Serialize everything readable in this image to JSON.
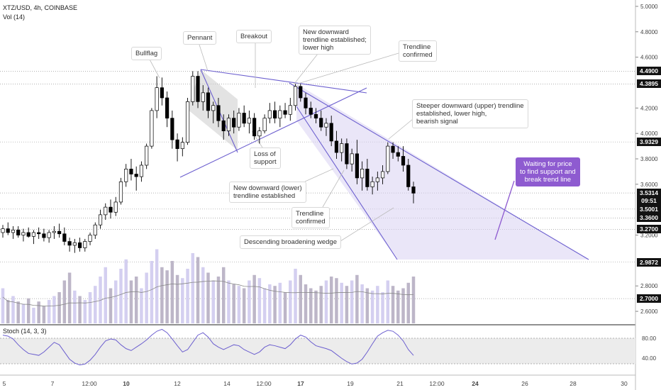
{
  "header": {
    "symbol": "XTZ/USD, 4h, COINBASE",
    "volume": "Vol (14)"
  },
  "stoch_label": "Stoch (14, 3, 3)",
  "colors": {
    "purple": "#8e5bd0",
    "line": "#6c5fcf",
    "up": "#ffffff",
    "down": "#000000",
    "grid": "#e9e9e9"
  },
  "annotations": [
    {
      "id": "bullflag",
      "text": "Bullflag"
    },
    {
      "id": "pennant",
      "text": "Pennant"
    },
    {
      "id": "breakout",
      "text": "Breakout"
    },
    {
      "id": "new-downward",
      "text": "New downward\ntrendline established;\nlower high"
    },
    {
      "id": "trendline-confirmed-1",
      "text": "Trendline\nconfirmed"
    },
    {
      "id": "steeper",
      "text": "Steeper downward (upper) trendline\nestablished, lower high,\nbearish signal"
    },
    {
      "id": "loss-of-support",
      "text": "Loss of\nsupport"
    },
    {
      "id": "new-lower",
      "text": "New downward (lower)\ntrendline established"
    },
    {
      "id": "trendline-confirmed-2",
      "text": "Trendline\nconfirmed"
    },
    {
      "id": "wedge",
      "text": "Descending broadening wedge"
    }
  ],
  "callout": "Waiting for price\nto find support and\nbreak trend line",
  "price_axis": [
    "5.0000",
    "4.8000",
    "4.6000",
    "4.2000",
    "4.0000",
    "3.8000",
    "3.6000",
    "3.2000",
    "2.8000",
    "2.6000"
  ],
  "price_badges": [
    {
      "label": "4.4900",
      "value": 4.49,
      "style": "dark"
    },
    {
      "label": "4.3895",
      "value": 4.3895,
      "style": "dark"
    },
    {
      "label": "3.9329",
      "value": 3.9329,
      "style": "dark"
    },
    {
      "label": "3.5314",
      "value": 3.5314,
      "style": "dark"
    },
    {
      "label": "09:51",
      "value": 3.47,
      "style": "dark"
    },
    {
      "label": "3.5001",
      "value": 3.405,
      "style": "dark"
    },
    {
      "label": "3.3600",
      "value": 3.335,
      "style": "dark"
    },
    {
      "label": "3.2700",
      "value": 3.245,
      "style": "dark"
    },
    {
      "label": "2.9872",
      "value": 2.9872,
      "style": "dark"
    },
    {
      "label": "2.7000",
      "value": 2.7,
      "style": "dark"
    }
  ],
  "stoch_axis": [
    "80.00",
    "40.00"
  ],
  "time_axis": [
    "5",
    "7",
    "12:00",
    "10",
    "12",
    "14",
    "12:00",
    "17",
    "19",
    "21",
    "12:00",
    "24",
    "26",
    "28",
    "30"
  ],
  "chart_data": {
    "type": "candlestick",
    "title": "XTZ/USD, 4h, COINBASE",
    "ylim": [
      2.5,
      5.05
    ],
    "candles": [
      [
        3.22,
        3.28,
        3.18,
        3.25
      ],
      [
        3.25,
        3.3,
        3.2,
        3.22
      ],
      [
        3.22,
        3.27,
        3.17,
        3.24
      ],
      [
        3.24,
        3.27,
        3.18,
        3.2
      ],
      [
        3.2,
        3.25,
        3.15,
        3.22
      ],
      [
        3.22,
        3.26,
        3.18,
        3.19
      ],
      [
        3.19,
        3.24,
        3.13,
        3.22
      ],
      [
        3.22,
        3.26,
        3.17,
        3.21
      ],
      [
        3.21,
        3.25,
        3.15,
        3.18
      ],
      [
        3.18,
        3.24,
        3.14,
        3.22
      ],
      [
        3.22,
        3.27,
        3.17,
        3.23
      ],
      [
        3.23,
        3.29,
        3.18,
        3.21
      ],
      [
        3.21,
        3.26,
        3.12,
        3.15
      ],
      [
        3.15,
        3.18,
        3.07,
        3.12
      ],
      [
        3.12,
        3.17,
        3.06,
        3.14
      ],
      [
        3.14,
        3.18,
        3.07,
        3.1
      ],
      [
        3.1,
        3.17,
        3.07,
        3.15
      ],
      [
        3.15,
        3.22,
        3.12,
        3.2
      ],
      [
        3.2,
        3.3,
        3.17,
        3.28
      ],
      [
        3.28,
        3.4,
        3.25,
        3.36
      ],
      [
        3.36,
        3.45,
        3.32,
        3.42
      ],
      [
        3.42,
        3.48,
        3.33,
        3.38
      ],
      [
        3.38,
        3.5,
        3.35,
        3.46
      ],
      [
        3.46,
        3.65,
        3.44,
        3.62
      ],
      [
        3.62,
        3.76,
        3.58,
        3.72
      ],
      [
        3.72,
        3.8,
        3.63,
        3.68
      ],
      [
        3.68,
        3.74,
        3.55,
        3.66
      ],
      [
        3.66,
        3.78,
        3.62,
        3.75
      ],
      [
        3.75,
        3.92,
        3.72,
        3.9
      ],
      [
        3.9,
        4.2,
        3.88,
        4.18
      ],
      [
        4.18,
        4.45,
        4.12,
        4.36
      ],
      [
        4.36,
        4.44,
        4.22,
        4.28
      ],
      [
        4.28,
        4.33,
        4.05,
        4.12
      ],
      [
        4.12,
        4.18,
        3.88,
        3.95
      ],
      [
        3.95,
        4.0,
        3.78,
        3.88
      ],
      [
        3.88,
        3.97,
        3.82,
        3.93
      ],
      [
        3.93,
        4.28,
        3.91,
        4.25
      ],
      [
        4.25,
        4.49,
        4.22,
        4.45
      ],
      [
        4.45,
        4.49,
        4.2,
        4.25
      ],
      [
        4.25,
        4.38,
        4.18,
        4.32
      ],
      [
        4.32,
        4.36,
        4.12,
        4.18
      ],
      [
        4.18,
        4.25,
        4.08,
        4.22
      ],
      [
        4.22,
        4.28,
        4.05,
        4.1
      ],
      [
        4.1,
        4.15,
        3.95,
        4.02
      ],
      [
        4.02,
        4.15,
        3.98,
        4.12
      ],
      [
        4.12,
        4.18,
        4.0,
        4.05
      ],
      [
        4.05,
        4.2,
        4.02,
        4.16
      ],
      [
        4.16,
        4.22,
        4.05,
        4.08
      ],
      [
        4.08,
        4.18,
        4.0,
        4.12
      ],
      [
        4.12,
        4.16,
        3.95,
        3.98
      ],
      [
        3.98,
        4.05,
        3.92,
        4.02
      ],
      [
        4.02,
        4.15,
        4.0,
        4.12
      ],
      [
        4.12,
        4.24,
        4.08,
        4.18
      ],
      [
        4.18,
        4.25,
        4.08,
        4.12
      ],
      [
        4.12,
        4.22,
        4.05,
        4.18
      ],
      [
        4.18,
        4.24,
        4.12,
        4.15
      ],
      [
        4.15,
        4.28,
        4.1,
        4.22
      ],
      [
        4.22,
        4.39,
        4.18,
        4.37
      ],
      [
        4.37,
        4.39,
        4.25,
        4.28
      ],
      [
        4.28,
        4.32,
        4.15,
        4.2
      ],
      [
        4.2,
        4.25,
        4.12,
        4.15
      ],
      [
        4.15,
        4.2,
        4.08,
        4.12
      ],
      [
        4.12,
        4.18,
        4.02,
        4.05
      ],
      [
        4.05,
        4.12,
        3.98,
        4.08
      ],
      [
        4.08,
        4.14,
        3.9,
        3.94
      ],
      [
        3.94,
        4.02,
        3.8,
        3.85
      ],
      [
        3.85,
        3.96,
        3.78,
        3.92
      ],
      [
        3.92,
        3.96,
        3.72,
        3.76
      ],
      [
        3.76,
        3.88,
        3.7,
        3.84
      ],
      [
        3.84,
        3.95,
        3.6,
        3.65
      ],
      [
        3.65,
        3.78,
        3.55,
        3.72
      ],
      [
        3.72,
        3.8,
        3.55,
        3.58
      ],
      [
        3.58,
        3.66,
        3.52,
        3.62
      ],
      [
        3.62,
        3.7,
        3.55,
        3.65
      ],
      [
        3.65,
        3.75,
        3.6,
        3.7
      ],
      [
        3.7,
        3.93,
        3.68,
        3.9
      ],
      [
        3.9,
        3.93,
        3.8,
        3.85
      ],
      [
        3.85,
        3.9,
        3.78,
        3.82
      ],
      [
        3.82,
        3.9,
        3.7,
        3.75
      ],
      [
        3.75,
        3.8,
        3.55,
        3.58
      ],
      [
        3.58,
        3.62,
        3.45,
        3.53
      ]
    ],
    "volume": [
      0.45,
      0.3,
      0.35,
      0.28,
      0.25,
      0.32,
      0.2,
      0.28,
      0.22,
      0.3,
      0.35,
      0.4,
      0.55,
      0.65,
      0.42,
      0.35,
      0.3,
      0.4,
      0.48,
      0.6,
      0.72,
      0.45,
      0.55,
      0.7,
      0.82,
      0.55,
      0.6,
      0.45,
      0.65,
      0.8,
      0.95,
      0.72,
      0.68,
      0.8,
      0.62,
      0.58,
      0.7,
      0.9,
      0.85,
      0.72,
      0.65,
      0.55,
      0.6,
      0.72,
      0.55,
      0.5,
      0.48,
      0.45,
      0.55,
      0.62,
      0.58,
      0.45,
      0.5,
      0.48,
      0.52,
      0.4,
      0.55,
      0.7,
      0.62,
      0.5,
      0.45,
      0.42,
      0.48,
      0.55,
      0.6,
      0.58,
      0.52,
      0.48,
      0.55,
      0.62,
      0.5,
      0.45,
      0.42,
      0.48,
      0.4,
      0.55,
      0.48,
      0.42,
      0.45,
      0.52,
      0.6
    ],
    "stoch_ylim": [
      0,
      100
    ]
  }
}
